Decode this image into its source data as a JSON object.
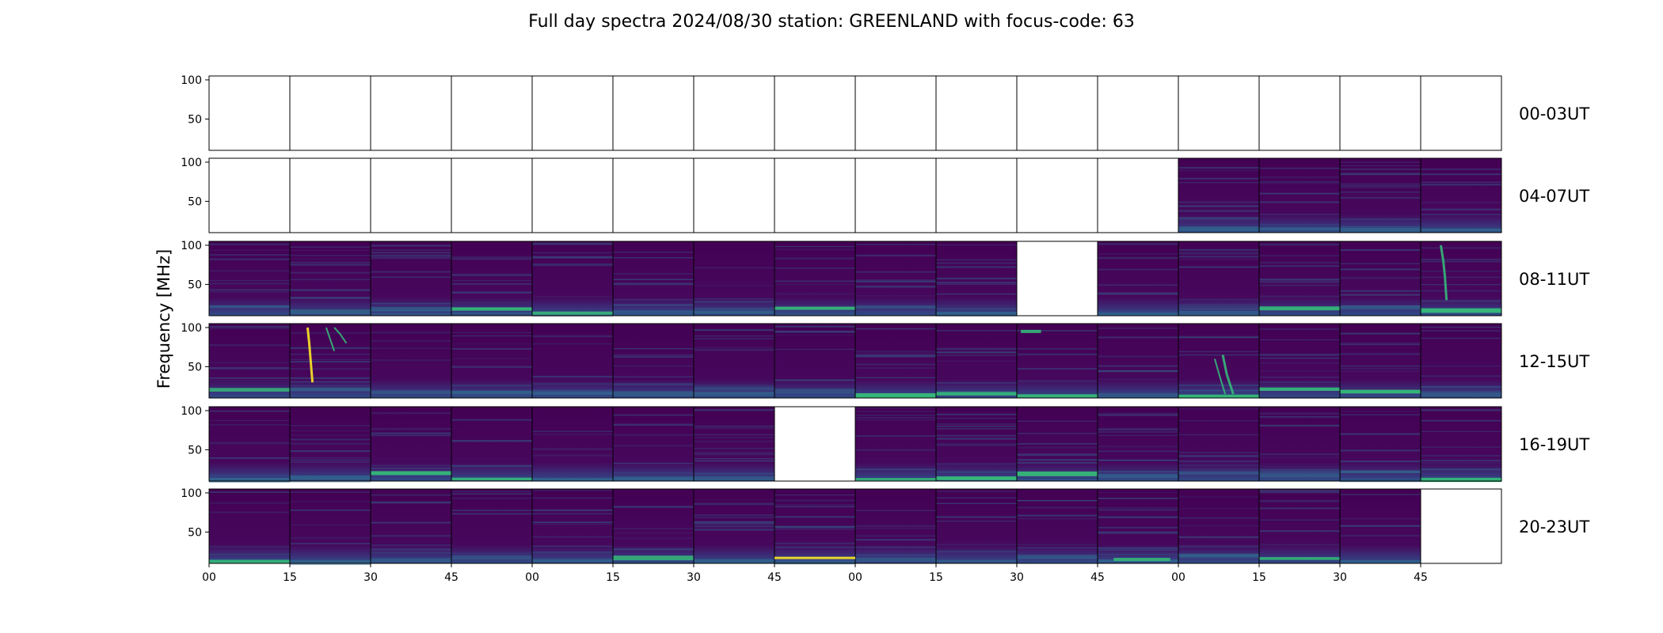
{
  "chart_data": {
    "type": "heatmap",
    "title": "Full day spectra 2024/08/30 station: GREENLAND with focus-code: 63",
    "ylabel": "Frequency [MHz]",
    "xlabel": "",
    "yticks": [
      "100",
      "50"
    ],
    "ylim": [
      10,
      105
    ],
    "xticks": [
      "00",
      "15",
      "30",
      "45",
      "00",
      "15",
      "30",
      "45",
      "00",
      "15",
      "30",
      "45",
      "00",
      "15",
      "30",
      "45"
    ],
    "colormap": "viridis",
    "colors": {
      "background": "#440154",
      "low": "#46085c",
      "mid": "#31688e",
      "high": "#35b779",
      "peak": "#fde725",
      "empty": "#ffffff"
    },
    "rows": [
      {
        "label": "00-03UT",
        "panels": [
          "empty",
          "empty",
          "empty",
          "empty",
          "empty",
          "empty",
          "empty",
          "empty",
          "empty",
          "empty",
          "empty",
          "empty",
          "empty",
          "empty",
          "empty",
          "empty"
        ]
      },
      {
        "label": "04-07UT",
        "panels": [
          "empty",
          "empty",
          "empty",
          "empty",
          "empty",
          "empty",
          "empty",
          "empty",
          "empty",
          "empty",
          "empty",
          "empty",
          "data",
          "data",
          "data",
          "data"
        ]
      },
      {
        "label": "08-11UT",
        "panels": [
          "data",
          "data",
          "data",
          "data",
          "data",
          "data",
          "data",
          "data",
          "data",
          "data",
          "empty",
          "data",
          "data",
          "data",
          "data",
          "data"
        ]
      },
      {
        "label": "12-15UT",
        "panels": [
          "data",
          "data",
          "data",
          "data",
          "data",
          "data",
          "data",
          "data",
          "data",
          "data",
          "data",
          "data",
          "data",
          "data",
          "data",
          "data"
        ]
      },
      {
        "label": "16-19UT",
        "panels": [
          "data",
          "data",
          "data",
          "data",
          "data",
          "data",
          "data",
          "empty",
          "data",
          "data",
          "data",
          "data",
          "data",
          "data",
          "data",
          "data"
        ]
      },
      {
        "label": "20-23UT",
        "panels": [
          "data",
          "data",
          "data",
          "data",
          "data",
          "data",
          "data",
          "data",
          "data",
          "data",
          "data",
          "data",
          "data",
          "data",
          "data",
          "empty"
        ]
      }
    ]
  }
}
